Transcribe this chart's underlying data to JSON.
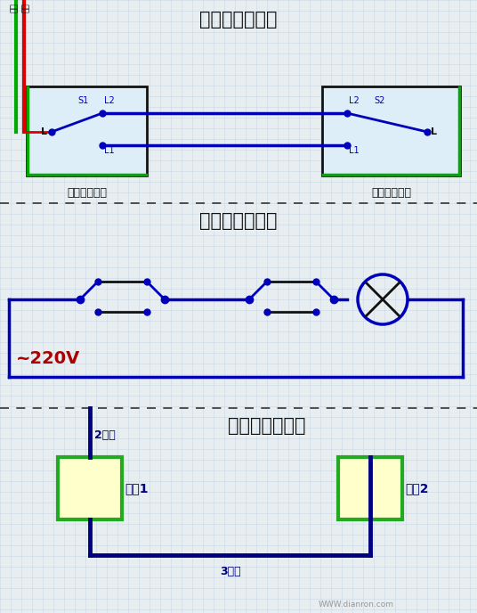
{
  "bg_color": "#e8edf0",
  "grid_color": "#c8d8e4",
  "title1": "双控开关接线图",
  "title2": "双控开关原理图",
  "title3": "双控开关布线图",
  "label_sw1": "单开双控开关",
  "label_sw2": "单开双控开关",
  "label_220v": "~220V",
  "label_2wire": "2根线",
  "label_3wire": "3根线",
  "label_sw1_box": "开关1",
  "label_sw2_box": "开关2",
  "blue": "#0000bb",
  "dark_blue": "#000080",
  "green_wire": "#00aa00",
  "red_wire": "#dd0000",
  "black": "#111111",
  "light_blue_fill": "#ddeef8",
  "yellow_fill": "#ffffcc",
  "green_border": "#22aa22",
  "220v_color": "#aa0000",
  "watermark": "WWW.dianron.com"
}
